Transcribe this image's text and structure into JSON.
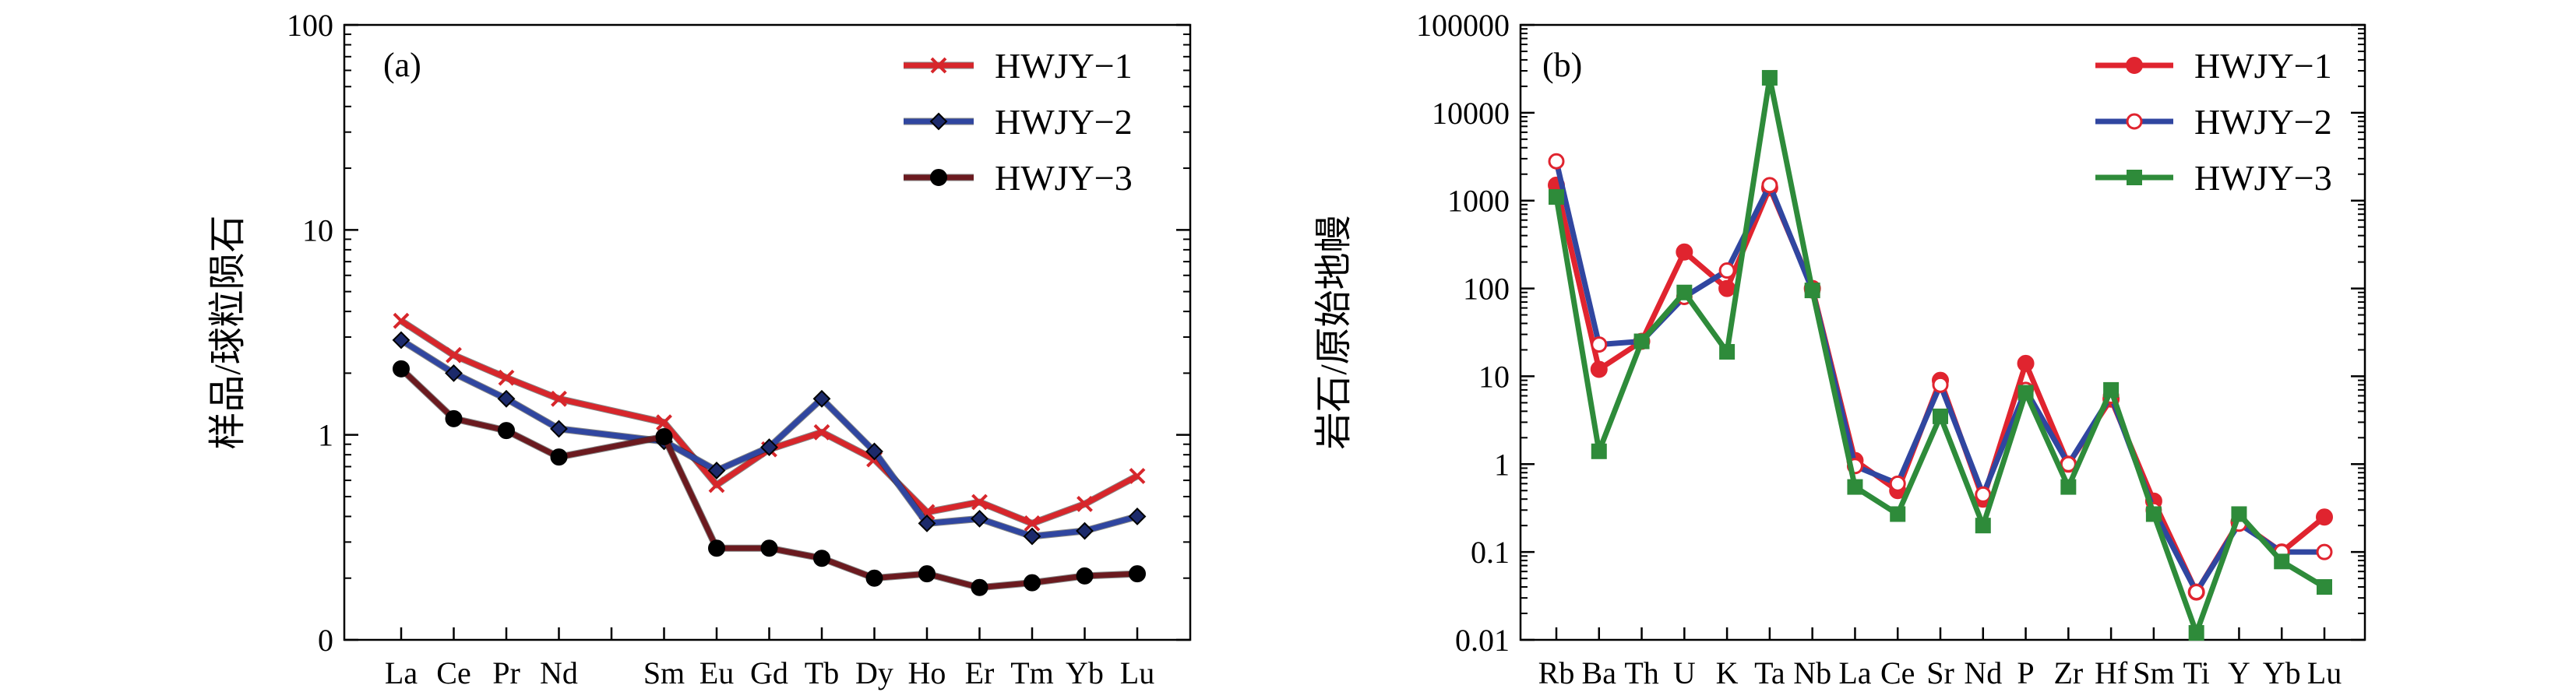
{
  "chart_data": [
    {
      "type": "line",
      "panel_label": "(a)",
      "ylabel": "样品/球粒陨石",
      "yscale": "log",
      "ylim": [
        0.1,
        100
      ],
      "yticks": [
        {
          "value": 100,
          "label": "100"
        },
        {
          "value": 10,
          "label": "10"
        },
        {
          "value": 1,
          "label": "1"
        },
        {
          "value": 0.1,
          "label": "0"
        }
      ],
      "categories": [
        "La",
        "Ce",
        "Pr",
        "Nd",
        "",
        "Sm",
        "Eu",
        "Gd",
        "Tb",
        "Dy",
        "Ho",
        "Er",
        "Tm",
        "Yb",
        "Lu"
      ],
      "legend_position": "top-right",
      "series": [
        {
          "name": "HWJY−1",
          "color": "#d7262b",
          "marker": "x",
          "values": [
            3.6,
            2.45,
            1.9,
            1.5,
            null,
            1.15,
            0.57,
            0.85,
            1.03,
            0.76,
            0.42,
            0.47,
            0.37,
            0.46,
            0.63
          ]
        },
        {
          "name": "HWJY−2",
          "color": "#3046a0",
          "marker": "diamond",
          "values": [
            2.9,
            2.0,
            1.5,
            1.07,
            null,
            0.93,
            0.67,
            0.87,
            1.5,
            0.83,
            0.37,
            0.39,
            0.32,
            0.34,
            0.4
          ]
        },
        {
          "name": "HWJY−3",
          "color": "#6b1a1f",
          "marker": "circle",
          "values": [
            2.1,
            1.2,
            1.05,
            0.78,
            null,
            0.98,
            0.28,
            0.28,
            0.25,
            0.2,
            0.21,
            0.18,
            0.19,
            0.205,
            0.21
          ]
        }
      ]
    },
    {
      "type": "line",
      "panel_label": "(b)",
      "ylabel": "岩石/原始地幔",
      "yscale": "log",
      "ylim": [
        0.01,
        100000
      ],
      "yticks": [
        {
          "value": 100000,
          "label": "100000"
        },
        {
          "value": 10000,
          "label": "10000"
        },
        {
          "value": 1000,
          "label": "1000"
        },
        {
          "value": 100,
          "label": "100"
        },
        {
          "value": 10,
          "label": "10"
        },
        {
          "value": 1,
          "label": "1"
        },
        {
          "value": 0.1,
          "label": "0.1"
        },
        {
          "value": 0.01,
          "label": "0.01"
        }
      ],
      "categories": [
        "Rb",
        "Ba",
        "Th",
        "U",
        "K",
        "Ta",
        "Nb",
        "La",
        "Ce",
        "Sr",
        "Nd",
        "P",
        "Zr",
        "Hf",
        "Sm",
        "Ti",
        "Y",
        "Yb",
        "Lu"
      ],
      "legend_position": "top-right",
      "series": [
        {
          "name": "HWJY−1",
          "color": "#e0242f",
          "marker": "circle",
          "values": [
            1500,
            12,
            25,
            260,
            100,
            1400,
            100,
            1.1,
            0.5,
            9,
            0.4,
            14,
            1.0,
            5.5,
            0.38,
            0.035,
            0.22,
            0.1,
            0.25
          ]
        },
        {
          "name": "HWJY−2",
          "color": "#3046a0",
          "marker": "circle-open",
          "values": [
            2800,
            23,
            25,
            80,
            160,
            1500,
            95,
            0.95,
            0.6,
            8,
            0.45,
            7,
            1.0,
            6,
            0.3,
            0.035,
            0.21,
            0.1,
            0.1
          ]
        },
        {
          "name": "HWJY−3",
          "color": "#2e8b3a",
          "marker": "square",
          "values": [
            1100,
            1.4,
            25,
            90,
            19,
            25000,
            95,
            0.55,
            0.27,
            3.5,
            0.2,
            6.5,
            0.55,
            7,
            0.27,
            0.012,
            0.27,
            0.078,
            0.04
          ]
        }
      ]
    }
  ]
}
